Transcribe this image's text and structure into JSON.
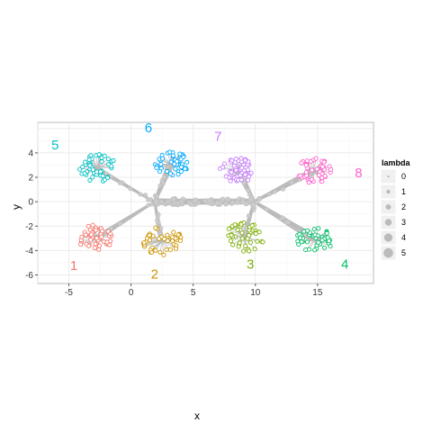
{
  "chart_data": {
    "type": "scatter",
    "xlabel": "x",
    "ylabel": "y",
    "xlim": [
      -7.5,
      19.5
    ],
    "ylim": [
      -6.7,
      6.5
    ],
    "x_ticks": [
      -5,
      0,
      5,
      10,
      15
    ],
    "y_ticks": [
      -6,
      -4,
      -2,
      0,
      2,
      4
    ],
    "grid": true,
    "legend": {
      "title": "lambda",
      "placement": "right",
      "entries": [
        "0",
        "1",
        "2",
        "3",
        "4",
        "5"
      ]
    },
    "trunk": {
      "x_range": [
        1.9,
        9.9
      ],
      "y_range": [
        -0.4,
        0.4
      ],
      "color": "#bbbbbb"
    },
    "branch_color": "#bbbbbb",
    "clusters": [
      {
        "label": "1",
        "color": "#F8766D",
        "center": [
          -2.8,
          -3.0
        ],
        "label_pos": [
          -4.6,
          -5.6
        ],
        "spread": [
          1.5,
          1.1
        ],
        "points": 45,
        "seed": 11
      },
      {
        "label": "2",
        "color": "#CD9600",
        "center": [
          2.5,
          -3.2
        ],
        "label_pos": [
          1.9,
          -6.3
        ],
        "spread": [
          1.6,
          1.2
        ],
        "points": 45,
        "seed": 23
      },
      {
        "label": "3",
        "color": "#7CAE00",
        "center": [
          9.1,
          -2.9
        ],
        "label_pos": [
          9.6,
          -5.5
        ],
        "spread": [
          1.6,
          1.2
        ],
        "points": 45,
        "seed": 37
      },
      {
        "label": "4",
        "color": "#00BE67",
        "center": [
          14.8,
          -3.1
        ],
        "label_pos": [
          17.2,
          -5.5
        ],
        "spread": [
          1.5,
          1.0
        ],
        "points": 45,
        "seed": 41
      },
      {
        "label": "5",
        "color": "#00BFC4",
        "center": [
          -2.7,
          2.8
        ],
        "label_pos": [
          -6.1,
          4.3
        ],
        "spread": [
          1.5,
          1.2
        ],
        "points": 45,
        "seed": 53
      },
      {
        "label": "6",
        "color": "#00A9FF",
        "center": [
          3.2,
          3.1
        ],
        "label_pos": [
          1.4,
          5.7
        ],
        "spread": [
          1.5,
          1.0
        ],
        "points": 45,
        "seed": 67
      },
      {
        "label": "7",
        "color": "#C77CFF",
        "center": [
          8.6,
          2.6
        ],
        "label_pos": [
          7.0,
          5.0
        ],
        "spread": [
          1.5,
          1.0
        ],
        "points": 45,
        "seed": 71
      },
      {
        "label": "8",
        "color": "#FF61CC",
        "center": [
          14.7,
          2.5
        ],
        "label_pos": [
          18.3,
          2.0
        ],
        "spread": [
          1.5,
          1.1
        ],
        "points": 45,
        "seed": 89
      }
    ]
  }
}
